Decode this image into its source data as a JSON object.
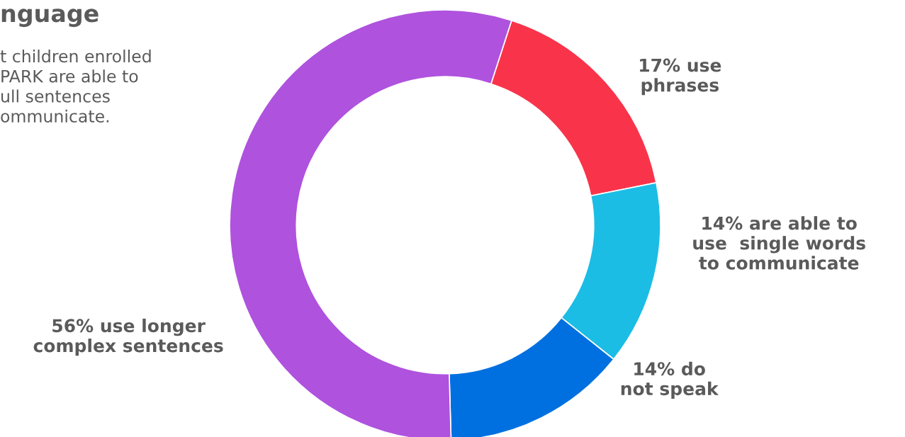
{
  "chart_data": {
    "type": "donut",
    "title": "nguage",
    "subtitle": "t children enrolled\nPARK are able to\null sentences\nommunicate.",
    "categories": [
      "17% use\nphrases",
      "14% are able to\nuse  single words\nto communicate",
      "14% do\nnot speak",
      "56% use longer\ncomplex sentences"
    ],
    "values": [
      17,
      14,
      14,
      56
    ],
    "colors": [
      "#f9344a",
      "#1bbde5",
      "#0070e0",
      "#af52de"
    ]
  }
}
